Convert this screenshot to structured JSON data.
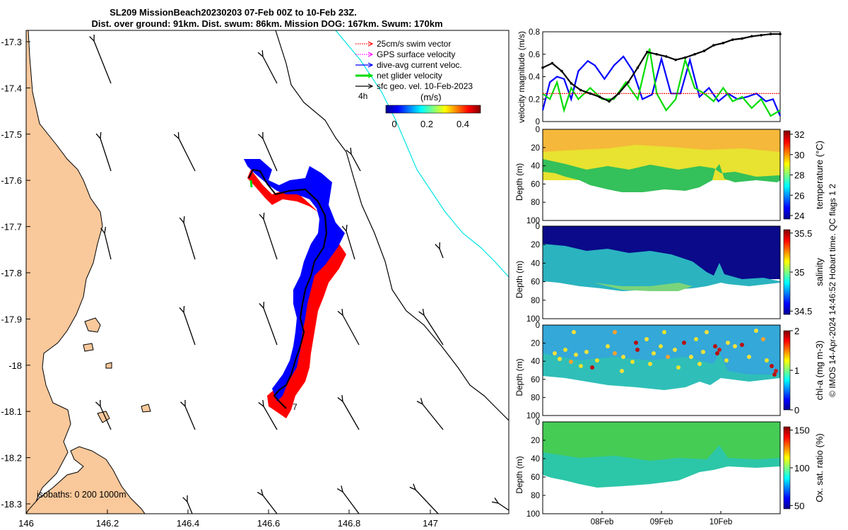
{
  "title": {
    "line1": "SL209 MissionBeach20230203 07-Feb 00Z to 10-Feb 23Z.",
    "line2": "Dist. over ground: 91km. Dist. swum: 86km. Mission DOG: 167km. Swum: 170km"
  },
  "colors": {
    "land": "#F9C89B",
    "swim": "#FF0000",
    "gps": "#FF00FF",
    "current": "#0000FF",
    "net": "#00DD00",
    "coast_isobath": "#00E5E5"
  },
  "map": {
    "xticks": [
      "146",
      "146.2",
      "146.4",
      "146.6",
      "146.8",
      "147"
    ],
    "yticks": [
      "-17.3",
      "-17.4",
      "-17.5",
      "-17.6",
      "-17.7",
      "-17.8",
      "-17.9",
      "-18",
      "-18.1",
      "-18.2",
      "-18.3"
    ],
    "legend": [
      {
        "label": "25cm/s swim vector",
        "color": "#FF0000",
        "style": "dotted"
      },
      {
        "label": "GPS surface velocity",
        "color": "#FF00FF",
        "style": "dotted"
      },
      {
        "label": "dive-avg current veloc.",
        "color": "#0000FF",
        "style": "solid"
      },
      {
        "label": "net glider velocity",
        "color": "#00DD00",
        "style": "thick"
      },
      {
        "label": "sfc geo. vel. 10-Feb-2023",
        "color": "#000000",
        "style": "solid"
      }
    ],
    "scale_label": "4h",
    "colorbar": {
      "unit": "(m/s)",
      "ticks": [
        "0",
        "0.2",
        "0.4"
      ]
    },
    "isobaths_label": "isobaths: 0   200  1000m",
    "end_marker": "7"
  },
  "chart_data": [
    {
      "type": "line",
      "title": "",
      "ylabel": "velocity magnitude (m/s)",
      "ylim": [
        0,
        0.8
      ],
      "yticks": [
        "0",
        "0.2",
        "0.4",
        "0.6",
        "0.8"
      ],
      "series": [
        {
          "name": "dive-avg current",
          "color": "#0000FF",
          "x": [
            0,
            0.03,
            0.06,
            0.09,
            0.12,
            0.15,
            0.19,
            0.22,
            0.26,
            0.3,
            0.34,
            0.38,
            0.42,
            0.46,
            0.5,
            0.54,
            0.58,
            0.62,
            0.66,
            0.7,
            0.74,
            0.78,
            0.82,
            0.86,
            0.9,
            0.94,
            0.97,
            1.0
          ],
          "values": [
            0.1,
            0.35,
            0.4,
            0.38,
            0.2,
            0.45,
            0.54,
            0.5,
            0.38,
            0.5,
            0.58,
            0.45,
            0.2,
            0.24,
            0.56,
            0.25,
            0.25,
            0.55,
            0.22,
            0.3,
            0.18,
            0.25,
            0.2,
            0.22,
            0.25,
            0.18,
            0.2,
            0.05
          ]
        },
        {
          "name": "net glider velocity",
          "color": "#00DD00",
          "x": [
            0,
            0.03,
            0.06,
            0.09,
            0.12,
            0.15,
            0.2,
            0.25,
            0.3,
            0.35,
            0.4,
            0.45,
            0.48,
            0.52,
            0.56,
            0.6,
            0.64,
            0.68,
            0.72,
            0.76,
            0.8,
            0.84,
            0.88,
            0.92,
            0.96,
            1.0
          ],
          "values": [
            0.25,
            0.2,
            0.35,
            0.1,
            0.3,
            0.2,
            0.3,
            0.2,
            0.2,
            0.35,
            0.2,
            0.65,
            0.25,
            0.1,
            0.2,
            0.55,
            0.3,
            0.25,
            0.18,
            0.3,
            0.18,
            0.22,
            0.12,
            0.2,
            0.05,
            0.1
          ]
        },
        {
          "name": "swim speed",
          "color": "#FF0000",
          "x": [
            0,
            1
          ],
          "values": [
            0.25,
            0.25
          ]
        },
        {
          "name": "surface geo. vel.",
          "color": "#000000",
          "x": [
            0,
            0.04,
            0.08,
            0.12,
            0.16,
            0.2,
            0.24,
            0.28,
            0.32,
            0.36,
            0.4,
            0.44,
            0.48,
            0.52,
            0.56,
            0.6,
            0.64,
            0.68,
            0.72,
            0.76,
            0.8,
            0.84,
            0.88,
            0.92,
            0.96,
            1.0
          ],
          "values": [
            0.48,
            0.52,
            0.45,
            0.34,
            0.28,
            0.25,
            0.22,
            0.18,
            0.25,
            0.35,
            0.48,
            0.62,
            0.6,
            0.58,
            0.55,
            0.57,
            0.6,
            0.63,
            0.68,
            0.7,
            0.73,
            0.74,
            0.76,
            0.77,
            0.78,
            0.78
          ]
        }
      ]
    },
    {
      "type": "heatmap",
      "ylabel": "Depth (m)",
      "cbar_label": "temperature (°C)",
      "cbar_ticks": [
        "24",
        "26",
        "28",
        "30",
        "32"
      ],
      "yticks": [
        "0",
        "20",
        "40",
        "60",
        "80",
        "100"
      ],
      "ylim": [
        0,
        100
      ]
    },
    {
      "type": "heatmap",
      "ylabel": "Depth (m)",
      "cbar_label": "salinity",
      "cbar_ticks": [
        "34.5",
        "35",
        "35.5"
      ],
      "yticks": [
        "0",
        "20",
        "40",
        "60",
        "80",
        "100"
      ],
      "ylim": [
        0,
        100
      ]
    },
    {
      "type": "heatmap",
      "ylabel": "Depth (m)",
      "cbar_label": "chl-a (mg m-3)",
      "cbar_ticks": [
        "0",
        "1",
        "2"
      ],
      "yticks": [
        "0",
        "20",
        "40",
        "60",
        "80",
        "100"
      ],
      "ylim": [
        0,
        100
      ]
    },
    {
      "type": "heatmap",
      "ylabel": "Depth (m)",
      "cbar_label": "Ox. sat. ratio (%)",
      "cbar_ticks": [
        "50",
        "100",
        "150"
      ],
      "yticks": [
        "0",
        "20",
        "40",
        "60",
        "80",
        "100"
      ],
      "ylim": [
        0,
        100
      ]
    }
  ],
  "time_axis": {
    "ticks": [
      "08Feb",
      "09Feb",
      "10Feb"
    ]
  },
  "side_note": "© IMOS 14-Apr-2024 14:46:52 Hobart time. QC flags 1  2"
}
